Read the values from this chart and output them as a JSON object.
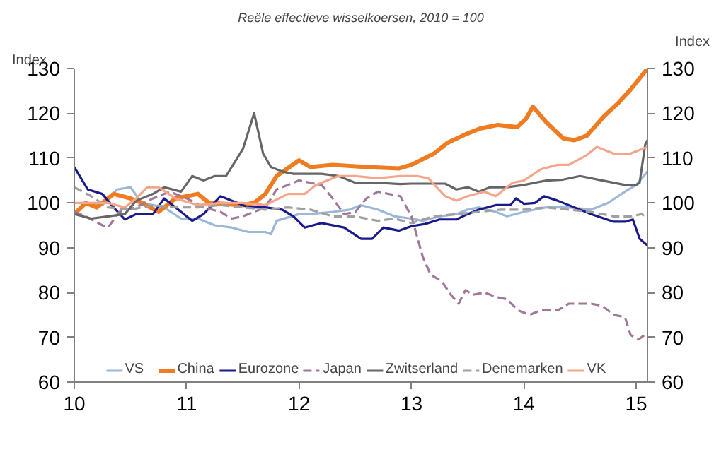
{
  "chart_data": {
    "type": "line",
    "title": "Reële effectieve wisselkoersen, 2010 = 100",
    "ylabel": "Index",
    "y2label": "Index",
    "xlim": [
      10,
      15.1
    ],
    "xticks": [
      10,
      11,
      12,
      13,
      14,
      15
    ],
    "ylim": [
      60,
      130
    ],
    "yticks": [
      60,
      70,
      80,
      90,
      100,
      110,
      120,
      130
    ],
    "y2lim": [
      60,
      130
    ],
    "y2ticks": [
      60,
      70,
      80,
      90,
      100,
      110,
      120,
      130
    ],
    "grid": false,
    "legend": "bottom",
    "marker": "none",
    "series": [
      {
        "name": "VS",
        "color": "#9bb8d8",
        "line_style": "solid",
        "x": [
          10.0,
          10.1,
          10.25,
          10.38,
          10.5,
          10.6,
          10.8,
          10.95,
          11.1,
          11.25,
          11.4,
          11.55,
          11.7,
          11.75,
          11.8,
          12.0,
          12.1,
          12.3,
          12.45,
          12.55,
          12.7,
          12.85,
          13.0,
          13.1,
          13.25,
          13.4,
          13.5,
          13.6,
          13.75,
          13.85,
          14.0,
          14.2,
          14.4,
          14.6,
          14.75,
          14.9,
          15.0,
          15.1
        ],
        "values": [
          98,
          99.5,
          99.5,
          103,
          103.5,
          100,
          99,
          96.5,
          96.5,
          95,
          94.5,
          93.5,
          93.5,
          93,
          96,
          97.5,
          97.5,
          98,
          98.5,
          99.5,
          98.5,
          97,
          96.5,
          96,
          97,
          97.5,
          98.5,
          99,
          98,
          97,
          98,
          99,
          99,
          98.5,
          100,
          102.5,
          104,
          107
        ]
      },
      {
        "name": "China",
        "color": "#f07c22",
        "line_style": "solid",
        "x": [
          10.0,
          10.1,
          10.2,
          10.35,
          10.5,
          10.6,
          10.75,
          10.9,
          11.1,
          11.2,
          11.5,
          11.6,
          11.7,
          11.8,
          12.0,
          12.1,
          12.3,
          12.6,
          12.89,
          13.0,
          13.12,
          13.2,
          13.32,
          13.49,
          13.61,
          13.77,
          13.94,
          14.02,
          14.08,
          14.2,
          14.35,
          14.45,
          14.56,
          14.72,
          14.84,
          14.95,
          15.1
        ],
        "values": [
          97.5,
          100,
          99,
          102,
          101,
          100,
          98,
          101,
          102,
          100,
          99.5,
          100,
          102,
          106,
          109.5,
          108,
          108.5,
          108,
          107.7,
          108.5,
          110,
          111,
          113.4,
          115.4,
          116.6,
          117.4,
          116.9,
          118.8,
          121.5,
          118,
          114.4,
          114,
          115,
          119.5,
          122.3,
          125.3,
          130
        ]
      },
      {
        "name": "Eurozone",
        "color": "#1a1a8c",
        "line_style": "solid",
        "x": [
          10.0,
          10.12,
          10.25,
          10.35,
          10.45,
          10.55,
          10.7,
          10.8,
          10.95,
          11.05,
          11.15,
          11.3,
          11.45,
          11.55,
          11.7,
          11.85,
          11.95,
          12.05,
          12.2,
          12.4,
          12.55,
          12.65,
          12.75,
          12.89,
          13.0,
          13.12,
          13.25,
          13.4,
          13.5,
          13.6,
          13.75,
          13.88,
          13.93,
          14.0,
          14.1,
          14.18,
          14.3,
          14.45,
          14.6,
          14.8,
          14.9,
          14.97,
          15.03,
          15.1
        ],
        "values": [
          108,
          103,
          102,
          99,
          96.3,
          97.5,
          97.5,
          101,
          98,
          96,
          97.5,
          101.5,
          100,
          99,
          99,
          98.5,
          97,
          94.5,
          95.5,
          94.5,
          92,
          92,
          94.5,
          93.8,
          94.8,
          95.3,
          96.3,
          96.3,
          97.5,
          98.5,
          99.5,
          99.5,
          101,
          99.8,
          100,
          101.5,
          100.5,
          99,
          97.5,
          95.8,
          95.8,
          96.3,
          92,
          90.5
        ]
      },
      {
        "name": "Japan",
        "color": "#a07898",
        "line_style": "dashed",
        "x": [
          10.0,
          10.1,
          10.25,
          10.3,
          10.4,
          10.55,
          10.7,
          10.85,
          11.0,
          11.15,
          11.3,
          11.4,
          11.5,
          11.7,
          11.8,
          11.9,
          12.0,
          12.1,
          12.2,
          12.3,
          12.4,
          12.5,
          12.6,
          12.7,
          12.9,
          13.0,
          13.1,
          13.17,
          13.27,
          13.35,
          13.42,
          13.48,
          13.55,
          13.65,
          13.75,
          13.85,
          13.95,
          14.05,
          14.15,
          14.3,
          14.4,
          14.6,
          14.7,
          14.8,
          14.9,
          14.95,
          15.02,
          15.1
        ],
        "values": [
          98,
          97,
          95,
          94.5,
          98,
          99,
          101,
          102.5,
          101,
          99,
          98,
          96.5,
          97,
          99,
          103,
          104,
          105,
          104.5,
          104,
          101,
          97.5,
          98,
          101,
          102.5,
          101.5,
          97,
          88,
          84,
          82.5,
          79.5,
          77.5,
          80.5,
          79.5,
          80,
          79,
          78.5,
          76,
          75,
          76,
          76,
          77.5,
          77.5,
          77,
          75,
          74.5,
          70.5,
          69.5,
          71
        ]
      },
      {
        "name": "Zwitserland",
        "color": "#666666",
        "line_style": "solid",
        "x": [
          10.0,
          10.15,
          10.3,
          10.45,
          10.55,
          10.7,
          10.8,
          10.95,
          11.05,
          11.15,
          11.25,
          11.35,
          11.45,
          11.5,
          11.6,
          11.68,
          11.75,
          11.85,
          11.95,
          12.05,
          12.2,
          12.35,
          12.5,
          12.7,
          12.9,
          13.0,
          13.3,
          13.4,
          13.5,
          13.6,
          13.7,
          13.85,
          14.0,
          14.2,
          14.35,
          14.5,
          14.7,
          14.9,
          15.0,
          15.03,
          15.08,
          15.1
        ],
        "values": [
          97.5,
          96.5,
          97,
          97.5,
          100.5,
          102,
          103.5,
          102.5,
          106,
          105,
          106,
          106,
          110,
          112,
          120,
          111,
          108,
          107,
          106.5,
          106.5,
          106.5,
          106,
          104.5,
          104.5,
          104.2,
          104.3,
          104.3,
          103,
          103.5,
          102.5,
          103.5,
          103.5,
          104,
          105,
          105.2,
          106,
          105,
          104,
          104,
          104.5,
          113,
          114
        ]
      },
      {
        "name": "Denemarken",
        "color": "#a0a0a0",
        "line_style": "dashed",
        "x": [
          10.0,
          10.15,
          10.3,
          10.5,
          10.7,
          10.9,
          11.1,
          11.3,
          11.5,
          11.7,
          11.9,
          12.1,
          12.3,
          12.5,
          12.7,
          12.85,
          13.0,
          13.2,
          13.4,
          13.6,
          13.8,
          14.0,
          14.2,
          14.4,
          14.6,
          14.8,
          14.95,
          15.05,
          15.1
        ],
        "values": [
          103.5,
          101.5,
          99,
          98.5,
          99.5,
          99,
          99,
          99.5,
          99,
          98.5,
          99,
          98.5,
          97,
          97,
          96,
          96.5,
          95.5,
          97,
          97.5,
          98,
          98.5,
          98.5,
          99,
          98.5,
          98,
          97,
          97,
          97.5,
          96.5
        ]
      },
      {
        "name": "VK",
        "color": "#f4a58a",
        "line_style": "solid",
        "x": [
          10.0,
          10.15,
          10.3,
          10.45,
          10.55,
          10.65,
          10.75,
          10.9,
          11.1,
          11.3,
          11.5,
          11.7,
          11.9,
          12.05,
          12.15,
          12.35,
          12.5,
          12.7,
          12.9,
          13.05,
          13.15,
          13.3,
          13.4,
          13.5,
          13.65,
          13.75,
          13.9,
          14.0,
          14.15,
          14.3,
          14.4,
          14.55,
          14.65,
          14.8,
          14.95,
          15.0,
          15.1
        ],
        "values": [
          100,
          100,
          100,
          99,
          101,
          103.5,
          103.5,
          101,
          99.5,
          100,
          100,
          99.5,
          102,
          102,
          104,
          106,
          106,
          105.5,
          106,
          106,
          105.5,
          101.5,
          100.5,
          101.5,
          102.5,
          101.5,
          104.5,
          105,
          107.5,
          108.5,
          108.5,
          110.5,
          112.5,
          111,
          111,
          111.5,
          112.5
        ]
      }
    ]
  }
}
